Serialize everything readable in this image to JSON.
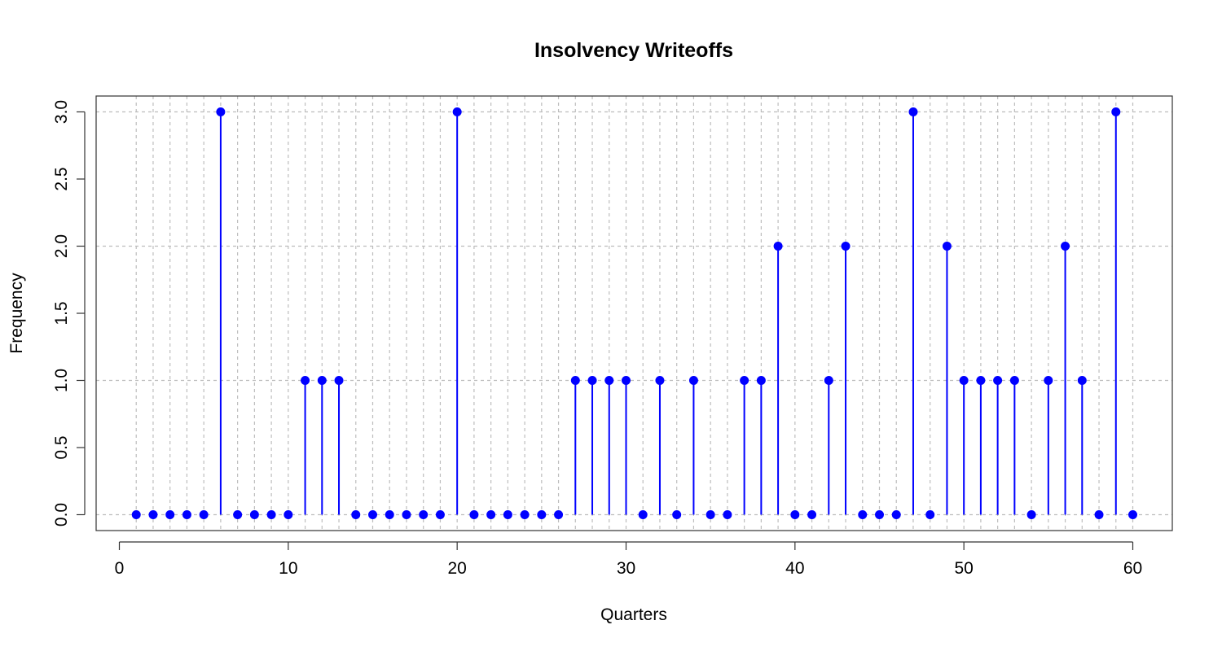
{
  "chart_data": {
    "type": "scatter",
    "style": "stem",
    "title": "Insolvency Writeoffs",
    "xlabel": "Quarters",
    "ylabel": "Frequency",
    "x": [
      1,
      2,
      3,
      4,
      5,
      6,
      7,
      8,
      9,
      10,
      11,
      12,
      13,
      14,
      15,
      16,
      17,
      18,
      19,
      20,
      21,
      22,
      23,
      24,
      25,
      26,
      27,
      28,
      29,
      30,
      31,
      32,
      33,
      34,
      35,
      36,
      37,
      38,
      39,
      40,
      41,
      42,
      43,
      44,
      45,
      46,
      47,
      48,
      49,
      50,
      51,
      52,
      53,
      54,
      55,
      56,
      57,
      58,
      59,
      60
    ],
    "values": [
      0,
      0,
      0,
      0,
      0,
      3,
      0,
      0,
      0,
      0,
      1,
      1,
      1,
      0,
      0,
      0,
      0,
      0,
      0,
      3,
      0,
      0,
      0,
      0,
      0,
      0,
      1,
      1,
      1,
      1,
      0,
      1,
      0,
      1,
      0,
      0,
      1,
      1,
      2,
      0,
      0,
      1,
      2,
      0,
      0,
      0,
      3,
      0,
      2,
      1,
      1,
      1,
      1,
      0,
      1,
      2,
      1,
      0,
      3,
      0
    ],
    "xlim": [
      0,
      60
    ],
    "ylim": [
      0,
      3
    ],
    "xticks": [
      0,
      10,
      20,
      30,
      40,
      50,
      60
    ],
    "yticks": [
      "0.0",
      "0.5",
      "1.0",
      "1.5",
      "2.0",
      "2.5",
      "3.0"
    ],
    "grid": true,
    "color": "#0000ff"
  }
}
